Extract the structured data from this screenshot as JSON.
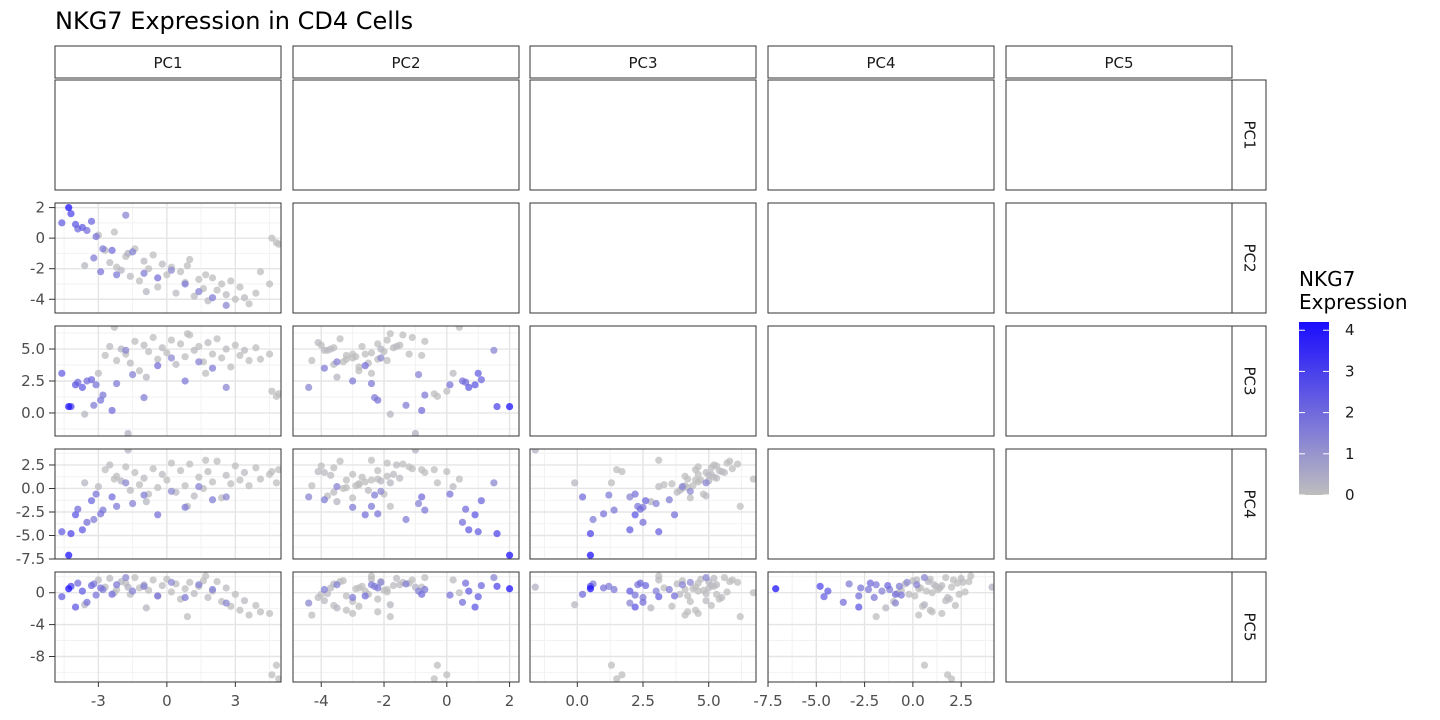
{
  "chart_data": {
    "type": "scatter",
    "title": "NKG7 Expression in CD4 Cells",
    "variables": [
      "PC1",
      "PC2",
      "PC3",
      "PC4",
      "PC5"
    ],
    "axes": {
      "PC1": {
        "range": [
          -4.9,
          5.0
        ],
        "ticks": [
          -3,
          0,
          3
        ],
        "tick_labels": [
          "-3",
          "0",
          "3"
        ]
      },
      "PC2": {
        "range": [
          -4.9,
          2.3
        ],
        "ticks": [
          -4,
          -2,
          0,
          2
        ],
        "tick_labels": [
          "-4",
          "-2",
          "0",
          "2"
        ]
      },
      "PC3": {
        "range": [
          -1.8,
          6.8
        ],
        "ticks": [
          0,
          2.5,
          5
        ],
        "tick_labels": [
          "0.0",
          "2.5",
          "5.0"
        ]
      },
      "PC4": {
        "range": [
          -7.5,
          4.2
        ],
        "ticks": [
          -7.5,
          -5,
          -2.5,
          0,
          2.5
        ],
        "tick_labels": [
          "-7.5",
          "-5.0",
          "-2.5",
          "0.0",
          "2.5"
        ]
      },
      "PC5": {
        "range": [
          -11.2,
          2.6
        ],
        "ticks": [
          -8,
          -4,
          0
        ],
        "tick_labels": [
          "-8",
          "-4",
          "0"
        ]
      }
    },
    "legend": {
      "title_lines": [
        "NKG7",
        "Expression"
      ],
      "placement": "right",
      "range": [
        0,
        4.2
      ],
      "ticks": [
        0,
        1,
        2,
        3,
        4
      ],
      "tick_labels": [
        "0",
        "1",
        "2",
        "3",
        "4"
      ],
      "low_color": "#BEBEBE",
      "high_color": "#1A0DFF"
    },
    "grid": true,
    "facet_layout": "lower-triangle pairs; columns = x variable, rows = y variable",
    "points": [
      {
        "PC1": -4.3,
        "PC2": 2.0,
        "PC3": 0.5,
        "PC4": -7.1,
        "PC5": 0.5,
        "NKG7": 4.1
      },
      {
        "PC1": -4.2,
        "PC2": 1.6,
        "PC3": 0.5,
        "PC4": -4.8,
        "PC5": 0.8,
        "NKG7": 2.8
      },
      {
        "PC1": -4.6,
        "PC2": 1.0,
        "PC3": 3.1,
        "PC4": -4.6,
        "PC5": -0.5,
        "NKG7": 2.2
      },
      {
        "PC1": -4.0,
        "PC2": 0.9,
        "PC3": 2.2,
        "PC4": -2.8,
        "PC5": -1.8,
        "NKG7": 2.4
      },
      {
        "PC1": -3.9,
        "PC2": 0.6,
        "PC3": 2.4,
        "PC4": -2.2,
        "PC5": 1.2,
        "NKG7": 1.9
      },
      {
        "PC1": -3.7,
        "PC2": 0.7,
        "PC3": 2.0,
        "PC4": -4.4,
        "PC5": 0.2,
        "NKG7": 2.3
      },
      {
        "PC1": -3.5,
        "PC2": 0.5,
        "PC3": 2.5,
        "PC4": -3.6,
        "PC5": -1.2,
        "NKG7": 1.8
      },
      {
        "PC1": -3.3,
        "PC2": 1.1,
        "PC3": 2.6,
        "PC4": -1.3,
        "PC5": 0.9,
        "NKG7": 2.0
      },
      {
        "PC1": -3.1,
        "PC2": 0.1,
        "PC3": 2.2,
        "PC4": -0.6,
        "PC5": -0.3,
        "NKG7": 1.7
      },
      {
        "PC1": -2.8,
        "PC2": -0.7,
        "PC3": 1.4,
        "PC4": -2.3,
        "PC5": 0.4,
        "NKG7": 1.6
      },
      {
        "PC1": -3.2,
        "PC2": -1.3,
        "PC3": 0.6,
        "PC4": -3.3,
        "PC5": 1.1,
        "NKG7": 1.5
      },
      {
        "PC1": -2.4,
        "PC2": -0.8,
        "PC3": 0.2,
        "PC4": -0.9,
        "PC5": -0.2,
        "NKG7": 1.9
      },
      {
        "PC1": -2.9,
        "PC2": -2.2,
        "PC3": 1.0,
        "PC4": -2.7,
        "PC5": 0.6,
        "NKG7": 1.7
      },
      {
        "PC1": -2.2,
        "PC2": -2.4,
        "PC3": 2.3,
        "PC4": -1.9,
        "PC5": 1.0,
        "NKG7": 1.6
      },
      {
        "PC1": -1.8,
        "PC2": 1.5,
        "PC3": 4.9,
        "PC4": 0.6,
        "PC5": 1.9,
        "NKG7": 1.3
      },
      {
        "PC1": -1.5,
        "PC2": -0.9,
        "PC3": 3.0,
        "PC4": -1.6,
        "PC5": 0.2,
        "NKG7": 1.4
      },
      {
        "PC1": -1.0,
        "PC2": -2.3,
        "PC3": 1.2,
        "PC4": -0.7,
        "PC5": 0.8,
        "NKG7": 1.5
      },
      {
        "PC1": -0.4,
        "PC2": -2.6,
        "PC3": 3.7,
        "PC4": -2.8,
        "PC5": -0.4,
        "NKG7": 1.8
      },
      {
        "PC1": 0.2,
        "PC2": -2.1,
        "PC3": 4.3,
        "PC4": -0.3,
        "PC5": 1.3,
        "NKG7": 1.2
      },
      {
        "PC1": 0.8,
        "PC2": -3.0,
        "PC3": 2.5,
        "PC4": -2.0,
        "PC5": -0.6,
        "NKG7": 1.6
      },
      {
        "PC1": 1.4,
        "PC2": -3.5,
        "PC3": 4.0,
        "PC4": 0.2,
        "PC5": 1.0,
        "NKG7": 1.4
      },
      {
        "PC1": 2.0,
        "PC2": -3.9,
        "PC3": 3.5,
        "PC4": -1.2,
        "PC5": 0.4,
        "NKG7": 1.5
      },
      {
        "PC1": 2.6,
        "PC2": -4.4,
        "PC3": 2.0,
        "PC4": -0.9,
        "PC5": -1.3,
        "NKG7": 1.3
      },
      {
        "PC1": -3.6,
        "PC2": -1.8,
        "PC3": -0.1,
        "PC4": 0.6,
        "PC5": -1.5,
        "NKG7": 0.2
      },
      {
        "PC1": -3.0,
        "PC2": 0.2,
        "PC3": 3.1,
        "PC4": 0.2,
        "PC5": 1.6,
        "NKG7": 0.1
      },
      {
        "PC1": -2.7,
        "PC2": -0.8,
        "PC3": 4.5,
        "PC4": 2.0,
        "PC5": 0.7,
        "NKG7": 0.0
      },
      {
        "PC1": -2.5,
        "PC2": -1.6,
        "PC3": 5.2,
        "PC4": 2.5,
        "PC5": 1.8,
        "NKG7": 0.1
      },
      {
        "PC1": -2.2,
        "PC2": -1.9,
        "PC3": 4.1,
        "PC4": 1.3,
        "PC5": 0.4,
        "NKG7": 0.0
      },
      {
        "PC1": -2.0,
        "PC2": -2.1,
        "PC3": 5.0,
        "PC4": 0.8,
        "PC5": 1.4,
        "NKG7": 0.2
      },
      {
        "PC1": -1.8,
        "PC2": -1.2,
        "PC3": 4.6,
        "PC4": 2.3,
        "PC5": 1.2,
        "NKG7": 0.0
      },
      {
        "PC1": -1.6,
        "PC2": -2.5,
        "PC3": 3.9,
        "PC4": -0.2,
        "PC5": -0.2,
        "NKG7": 0.1
      },
      {
        "PC1": -1.4,
        "PC2": -0.7,
        "PC3": 5.6,
        "PC4": 1.7,
        "PC5": 1.9,
        "NKG7": 0.0
      },
      {
        "PC1": -1.2,
        "PC2": -2.8,
        "PC3": 3.3,
        "PC4": 0.4,
        "PC5": 0.6,
        "NKG7": 0.0
      },
      {
        "PC1": -1.0,
        "PC2": -1.5,
        "PC3": 5.3,
        "PC4": 1.1,
        "PC5": 1.0,
        "NKG7": 0.1
      },
      {
        "PC1": -0.8,
        "PC2": -2.0,
        "PC3": 4.8,
        "PC4": -0.6,
        "PC5": 0.3,
        "NKG7": 0.0
      },
      {
        "PC1": -0.6,
        "PC2": -1.1,
        "PC3": 5.9,
        "PC4": 2.1,
        "PC5": 1.6,
        "NKG7": 0.0
      },
      {
        "PC1": -0.4,
        "PC2": -3.2,
        "PC3": 4.2,
        "PC4": 0.1,
        "PC5": -0.4,
        "NKG7": 0.0
      },
      {
        "PC1": -0.2,
        "PC2": -1.7,
        "PC3": 5.1,
        "PC4": 1.5,
        "PC5": 0.9,
        "NKG7": 0.1
      },
      {
        "PC1": 0.0,
        "PC2": -2.4,
        "PC3": 4.7,
        "PC4": 0.9,
        "PC5": 1.7,
        "NKG7": 0.0
      },
      {
        "PC1": 0.2,
        "PC2": -1.9,
        "PC3": 5.7,
        "PC4": 2.7,
        "PC5": 0.1,
        "NKG7": 0.0
      },
      {
        "PC1": 0.4,
        "PC2": -3.6,
        "PC3": 3.8,
        "PC4": -0.4,
        "PC5": 1.1,
        "NKG7": 0.1
      },
      {
        "PC1": 0.6,
        "PC2": -2.2,
        "PC3": 5.4,
        "PC4": 1.9,
        "PC5": -0.8,
        "NKG7": 0.0
      },
      {
        "PC1": 0.8,
        "PC2": -2.9,
        "PC3": 4.4,
        "PC4": 0.3,
        "PC5": 0.5,
        "NKG7": 0.0
      },
      {
        "PC1": 1.0,
        "PC2": -1.4,
        "PC3": 6.1,
        "PC4": 2.6,
        "PC5": 1.3,
        "NKG7": 0.0
      },
      {
        "PC1": 1.2,
        "PC2": -3.8,
        "PC3": 4.9,
        "PC4": -0.8,
        "PC5": -0.1,
        "NKG7": 0.1
      },
      {
        "PC1": 1.4,
        "PC2": -2.7,
        "PC3": 5.2,
        "PC4": 1.2,
        "PC5": 0.8,
        "NKG7": 0.0
      },
      {
        "PC1": 1.6,
        "PC2": -3.3,
        "PC3": 4.0,
        "PC4": 0.0,
        "PC5": 1.5,
        "NKG7": 0.0
      },
      {
        "PC1": 1.8,
        "PC2": -4.1,
        "PC3": 5.5,
        "PC4": 1.8,
        "PC5": -0.6,
        "NKG7": 0.1
      },
      {
        "PC1": 2.0,
        "PC2": -2.6,
        "PC3": 4.6,
        "PC4": 0.7,
        "PC5": 0.2,
        "NKG7": 0.0
      },
      {
        "PC1": 2.2,
        "PC2": -3.4,
        "PC3": 5.8,
        "PC4": 2.9,
        "PC5": 1.4,
        "NKG7": 0.0
      },
      {
        "PC1": 2.4,
        "PC2": -3.0,
        "PC3": 4.3,
        "PC4": -1.0,
        "PC5": -1.1,
        "NKG7": 0.0
      },
      {
        "PC1": 2.6,
        "PC2": -3.7,
        "PC3": 5.0,
        "PC4": 1.4,
        "PC5": 0.6,
        "NKG7": 0.1
      },
      {
        "PC1": 2.8,
        "PC2": -2.8,
        "PC3": 3.6,
        "PC4": 0.5,
        "PC5": -1.7,
        "NKG7": 0.0
      },
      {
        "PC1": 3.0,
        "PC2": -4.0,
        "PC3": 5.3,
        "PC4": 2.4,
        "PC5": -0.2,
        "NKG7": 0.0
      },
      {
        "PC1": 3.2,
        "PC2": -3.2,
        "PC3": 4.5,
        "PC4": 0.9,
        "PC5": -2.2,
        "NKG7": 0.0
      },
      {
        "PC1": 3.4,
        "PC2": -3.9,
        "PC3": 4.9,
        "PC4": 1.7,
        "PC5": -1.0,
        "NKG7": 0.1
      },
      {
        "PC1": 3.6,
        "PC2": -4.3,
        "PC3": 4.1,
        "PC4": 0.3,
        "PC5": -2.8,
        "NKG7": 0.0
      },
      {
        "PC1": 3.9,
        "PC2": -3.6,
        "PC3": 5.1,
        "PC4": 2.2,
        "PC5": -1.6,
        "NKG7": 0.0
      },
      {
        "PC1": 4.1,
        "PC2": -2.2,
        "PC3": 4.2,
        "PC4": 1.0,
        "PC5": -2.4,
        "NKG7": 0.0
      },
      {
        "PC1": 4.5,
        "PC2": -3.0,
        "PC3": 4.6,
        "PC4": 1.5,
        "PC5": -2.6,
        "NKG7": 0.0
      },
      {
        "PC1": 4.6,
        "PC2": 0.0,
        "PC3": 1.7,
        "PC4": 1.8,
        "PC5": -10.3,
        "NKG7": 0.0
      },
      {
        "PC1": 4.8,
        "PC2": -0.3,
        "PC3": 1.3,
        "PC4": 0.6,
        "PC5": -9.1,
        "NKG7": 0.0
      },
      {
        "PC1": 4.9,
        "PC2": -0.4,
        "PC3": 1.5,
        "PC4": 2.0,
        "PC5": -10.8,
        "NKG7": 0.0
      },
      {
        "PC1": -2.3,
        "PC2": 0.4,
        "PC3": 6.7,
        "PC4": 1.0,
        "PC5": 0.0,
        "NKG7": 0.0
      },
      {
        "PC1": -1.7,
        "PC2": -1.0,
        "PC3": -1.6,
        "PC4": 4.1,
        "PC5": 0.7,
        "NKG7": 0.3
      },
      {
        "PC1": 0.9,
        "PC2": -1.8,
        "PC3": 6.2,
        "PC4": -1.9,
        "PC5": -3.0,
        "NKG7": 0.0
      },
      {
        "PC1": 1.7,
        "PC2": -2.4,
        "PC3": 3.1,
        "PC4": 3.0,
        "PC5": 2.1,
        "NKG7": 0.0
      },
      {
        "PC1": -0.9,
        "PC2": -3.5,
        "PC3": 2.8,
        "PC4": -1.4,
        "PC5": -1.9,
        "NKG7": 0.2
      }
    ]
  }
}
